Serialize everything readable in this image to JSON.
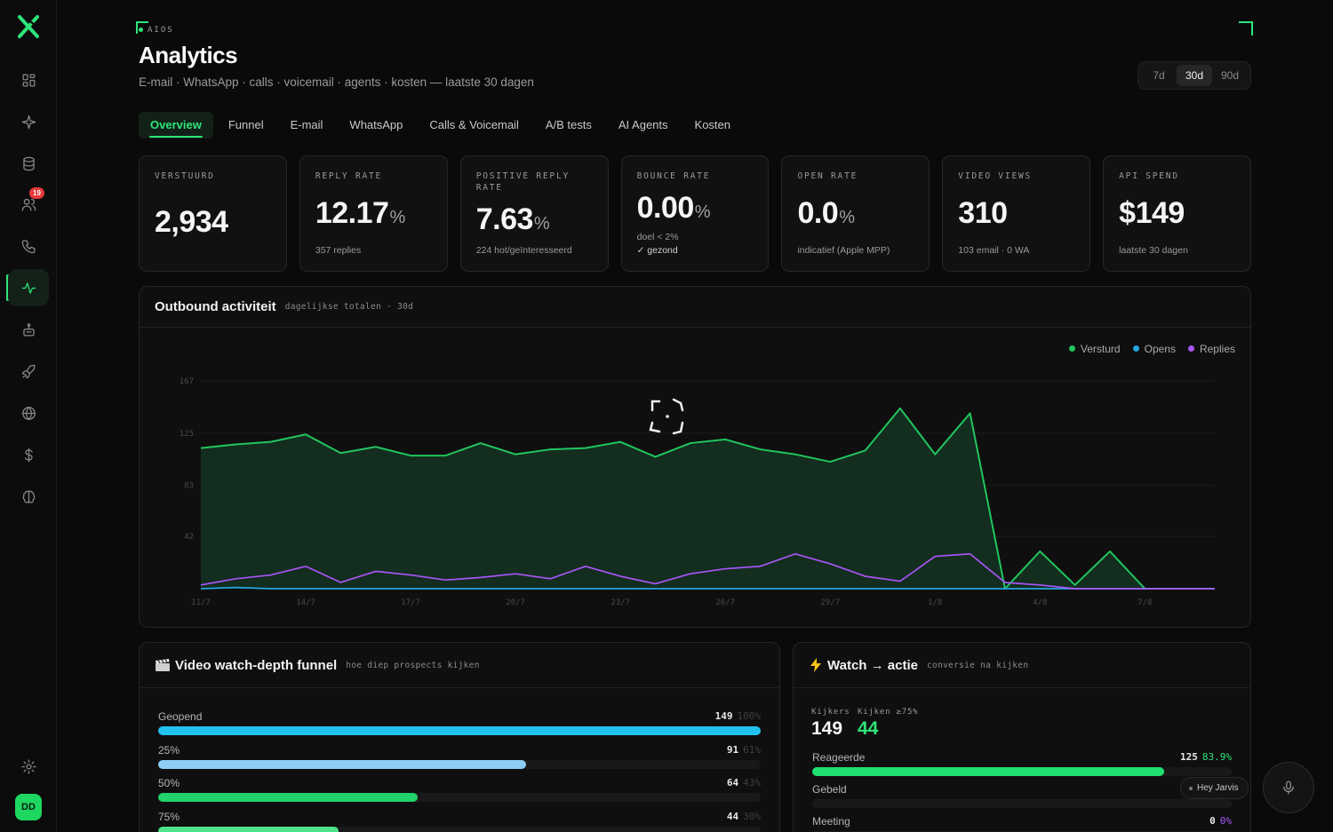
{
  "header": {
    "eyebrow": "AIOS",
    "title": "Analytics",
    "subtitle": "E-mail · WhatsApp · calls · voicemail · agents · kosten — laatste 30 dagen"
  },
  "range": {
    "options": [
      "7d",
      "30d",
      "90d"
    ],
    "selected": "30d"
  },
  "tabs": [
    "Overview",
    "Funnel",
    "E-mail",
    "WhatsApp",
    "Calls & Voicemail",
    "A/B tests",
    "AI Agents",
    "Kosten"
  ],
  "sidebar": {
    "icons": [
      "grid-icon",
      "sparkle-icon",
      "database-icon",
      "users-icon",
      "phone-icon",
      "activity-icon",
      "robot-icon",
      "rocket-icon",
      "globe-icon",
      "dollar-icon",
      "brain-icon"
    ],
    "badge": "19",
    "active": "activity-icon",
    "avatar": "DD"
  },
  "kpis": [
    {
      "label": "VERSTUURD",
      "value": "2,934",
      "unit": "",
      "sub": ""
    },
    {
      "label": "REPLY RATE",
      "value": "12.17",
      "unit": "%",
      "sub": "357 replies"
    },
    {
      "label": "POSITIVE REPLY RATE",
      "value": "7.63",
      "unit": "%",
      "sub": "224 hot/geïnteresseerd"
    },
    {
      "label": "BOUNCE RATE",
      "value": "0.00",
      "unit": "%",
      "sub": "doel < 2%",
      "sub2": "✓ gezond"
    },
    {
      "label": "OPEN RATE",
      "value": "0.0",
      "unit": "%",
      "sub": "indicatief (Apple MPP)"
    },
    {
      "label": "VIDEO VIEWS",
      "value": "310",
      "unit": "",
      "sub": "103 email · 0 WA"
    },
    {
      "label": "API SPEND",
      "value": "$149",
      "unit": "",
      "sub": "laatste 30 dagen"
    }
  ],
  "outbound": {
    "title": "Outbound activiteit",
    "tag": "dagelijkse totalen · 30d"
  },
  "chart_data": {
    "type": "area",
    "x": [
      "11/7",
      "12/7",
      "13/7",
      "14/7",
      "15/7",
      "16/7",
      "17/7",
      "18/7",
      "19/7",
      "20/7",
      "21/7",
      "22/7",
      "23/7",
      "24/7",
      "25/7",
      "26/7",
      "27/7",
      "28/7",
      "29/7",
      "30/7",
      "31/7",
      "1/8",
      "2/8",
      "3/8",
      "4/8",
      "5/8",
      "6/8",
      "7/8",
      "8/8",
      "9/8"
    ],
    "x_tick_labels": [
      "11/7",
      "14/7",
      "17/7",
      "20/7",
      "23/7",
      "26/7",
      "29/7",
      "1/8",
      "4/8",
      "7/8"
    ],
    "y_ticks": [
      167,
      125,
      83,
      42
    ],
    "ylim": [
      0,
      167
    ],
    "grid": true,
    "legend_position": "top-right",
    "series": [
      {
        "name": "Versturd",
        "color": "#22c55e",
        "values": [
          113,
          116,
          118,
          124,
          109,
          114,
          107,
          107,
          117,
          108,
          112,
          113,
          118,
          106,
          117,
          120,
          112,
          108,
          102,
          111,
          145,
          108,
          141,
          0,
          30,
          3,
          30,
          0,
          0,
          0
        ]
      },
      {
        "name": "Opens",
        "color": "#22a6e0",
        "values": [
          0,
          1,
          0,
          0,
          0,
          0,
          0,
          0,
          0,
          0,
          0,
          0,
          0,
          0,
          0,
          0,
          0,
          0,
          0,
          0,
          0,
          0,
          0,
          0,
          0,
          0,
          0,
          0,
          0,
          0
        ]
      },
      {
        "name": "Replies",
        "color": "#a855f7",
        "values": [
          3,
          8,
          11,
          18,
          5,
          14,
          11,
          7,
          9,
          12,
          8,
          18,
          10,
          4,
          12,
          16,
          18,
          28,
          20,
          10,
          6,
          26,
          28,
          5,
          3,
          0,
          0,
          0,
          0,
          0
        ]
      }
    ]
  },
  "video_funnel": {
    "icon": "clapper-icon",
    "title": "Video watch-depth funnel",
    "tag": "hoe diep prospects kijken",
    "rows": [
      {
        "label": "Geopend",
        "count": "149",
        "pct": "100%",
        "fraction": 1.0,
        "color": "#22c3f0"
      },
      {
        "label": "25%",
        "count": "91",
        "pct": "61%",
        "fraction": 0.61,
        "color": "#8ecdf5"
      },
      {
        "label": "50%",
        "count": "64",
        "pct": "43%",
        "fraction": 0.43,
        "color": "#22d36b"
      },
      {
        "label": "75%",
        "count": "44",
        "pct": "30%",
        "fraction": 0.3,
        "color": "#4ee38a"
      }
    ]
  },
  "watch_action": {
    "icon": "bolt-icon",
    "title": "Watch → actie",
    "tag": "conversie na kijken",
    "stats": [
      {
        "label": "Kijkers",
        "value": "149",
        "color": "#f5f5f5"
      },
      {
        "label": "Kijken ≥75%",
        "value": "44",
        "color": "#2ee57a"
      }
    ],
    "rows": [
      {
        "label": "Reageerde",
        "count": "125",
        "pct": "83.9%",
        "fraction": 0.839,
        "color": "#22e06f",
        "pct_color": "#2ee57a"
      },
      {
        "label": "Gebeld",
        "count": "",
        "pct": "",
        "fraction": 0,
        "color": "#22e06f",
        "pct_color": "#2ee57a"
      },
      {
        "label": "Meeting",
        "count": "0",
        "pct": "0%",
        "fraction": 0,
        "color": "#a855f7",
        "pct_color": "#a855f7"
      }
    ]
  },
  "assistant": {
    "label": "Hey Jarvis"
  }
}
